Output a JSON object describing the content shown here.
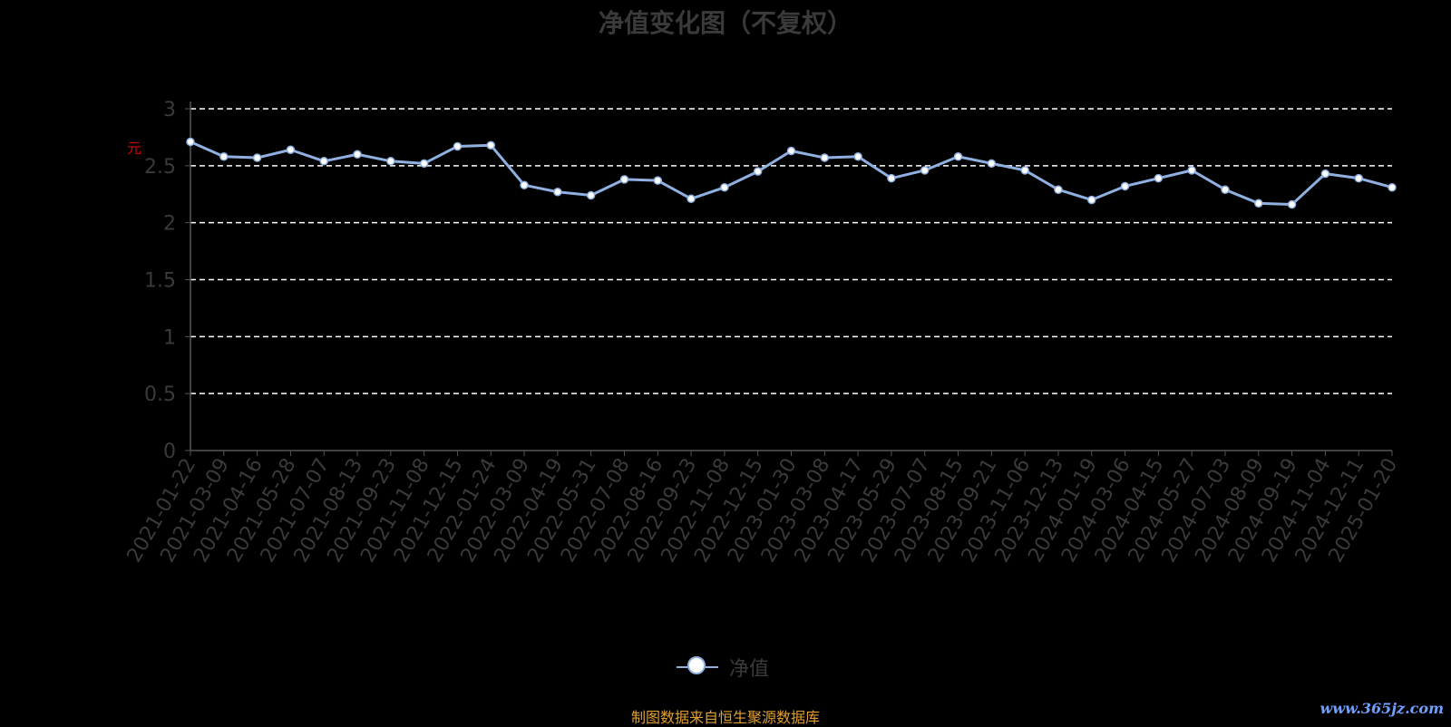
{
  "chart_data": {
    "type": "line",
    "title": "净值变化图（不复权）",
    "ylabel": "元",
    "ylim": [
      0,
      3
    ],
    "yticks": [
      "0",
      "0.5",
      "1",
      "1.5",
      "2",
      "2.5",
      "3"
    ],
    "grid": true,
    "legend_position": "bottom",
    "categories": [
      "2021-01-22",
      "2021-03-09",
      "2021-04-16",
      "2021-05-28",
      "2021-07-07",
      "2021-08-13",
      "2021-09-23",
      "2021-11-08",
      "2021-12-15",
      "2022-01-24",
      "2022-03-09",
      "2022-04-19",
      "2022-05-31",
      "2022-07-08",
      "2022-08-16",
      "2022-09-23",
      "2022-11-08",
      "2022-12-15",
      "2023-01-30",
      "2023-03-08",
      "2023-04-17",
      "2023-05-29",
      "2023-07-07",
      "2023-08-15",
      "2023-09-21",
      "2023-11-06",
      "2023-12-13",
      "2024-01-19",
      "2024-03-06",
      "2024-04-15",
      "2024-05-27",
      "2024-07-03",
      "2024-08-09",
      "2024-09-19",
      "2024-11-04",
      "2024-12-11",
      "2025-01-20"
    ],
    "series": [
      {
        "name": "净值",
        "color": "#8fb0e0",
        "values": [
          2.71,
          2.58,
          2.57,
          2.64,
          2.54,
          2.6,
          2.54,
          2.52,
          2.67,
          2.68,
          2.33,
          2.27,
          2.24,
          2.38,
          2.37,
          2.21,
          2.31,
          2.45,
          2.63,
          2.57,
          2.58,
          2.39,
          2.46,
          2.58,
          2.52,
          2.46,
          2.29,
          2.2,
          2.32,
          2.39,
          2.46,
          2.29,
          2.17,
          2.16,
          2.43,
          2.39,
          2.31
        ]
      }
    ]
  },
  "legend": {
    "label": "净值"
  },
  "footer": {
    "source": "制图数据来自恒生聚源数据库",
    "watermark": "www.365jz.com"
  },
  "colors": {
    "line": "#8fb0e0",
    "axis_text": "#3a3a3a",
    "grid": "#ffffff",
    "source": "#e0a030"
  }
}
